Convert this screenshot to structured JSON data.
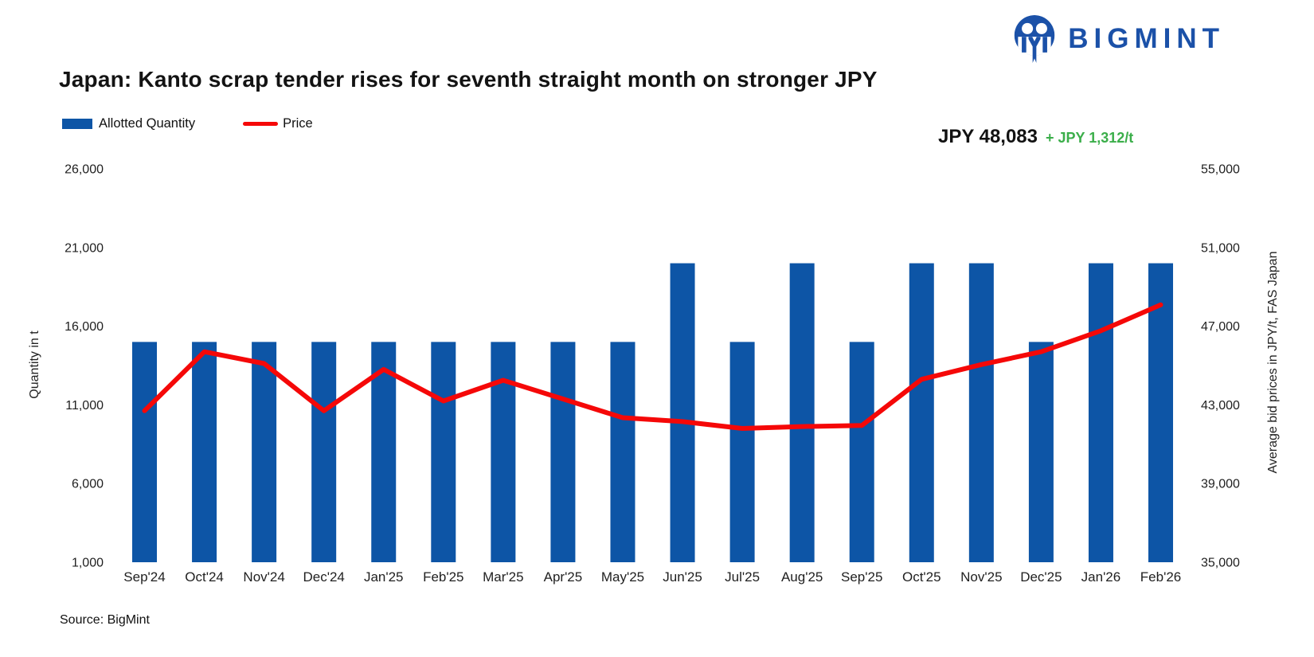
{
  "brand": {
    "logo_text": "BIGMINT",
    "logo_color": "#1B51A8"
  },
  "title": "Japan: Kanto scrap tender rises for seventh straight month on stronger JPY",
  "legend": {
    "bar_label": "Allotted Quantity",
    "line_label": "Price",
    "bar_color": "#0D55A6",
    "line_color": "#F50808"
  },
  "annotation": {
    "price": "JPY 48,083",
    "change": "+ JPY 1,312/t",
    "change_color": "#3BAE4A"
  },
  "source": "Source: BigMint",
  "chart_data": {
    "type": "bar+line combo",
    "grid": false,
    "legend_position": "top-left",
    "categories": [
      "Sep'24",
      "Oct'24",
      "Nov'24",
      "Dec'24",
      "Jan'25",
      "Feb'25",
      "Mar'25",
      "Apr'25",
      "May'25",
      "Jun'25",
      "Jul'25",
      "Aug'25",
      "Sep'25",
      "Oct'25",
      "Nov'25",
      "Dec'25",
      "Jan'26",
      "Feb'26"
    ],
    "series": [
      {
        "name": "Allotted Quantity",
        "type": "bar",
        "axis": "left",
        "color": "#0D55A6",
        "values": [
          15000,
          15000,
          15000,
          15000,
          15000,
          15000,
          15000,
          15000,
          15000,
          20000,
          15000,
          20000,
          15000,
          20000,
          20000,
          15000,
          20000,
          20000
        ]
      },
      {
        "name": "Price",
        "type": "line",
        "axis": "right",
        "color": "#F50808",
        "values": [
          42700,
          45700,
          45100,
          42700,
          44800,
          43200,
          44250,
          43300,
          42350,
          42150,
          41800,
          41900,
          41950,
          44300,
          45050,
          45700,
          46771,
          48083
        ]
      }
    ],
    "left_axis": {
      "label": "Quantity in t",
      "min": 1000,
      "max": 26000,
      "tick_values": [
        26000,
        21000,
        16000,
        11000,
        6000,
        1000
      ],
      "ticks": [
        "26,000",
        "21,000",
        "16,000",
        "11,000",
        "6,000",
        "1,000"
      ]
    },
    "right_axis": {
      "label": "Average bid prices in JPY/t, FAS Japan",
      "min": 35000,
      "max": 55000,
      "tick_values": [
        55000,
        51000,
        47000,
        43000,
        39000,
        35000
      ],
      "ticks": [
        "55,000",
        "51,000",
        "47,000",
        "43,000",
        "39,000",
        "35,000"
      ]
    },
    "latest_point": {
      "category": "Feb'26",
      "price": 48083,
      "change_from_prev": 1312
    }
  }
}
